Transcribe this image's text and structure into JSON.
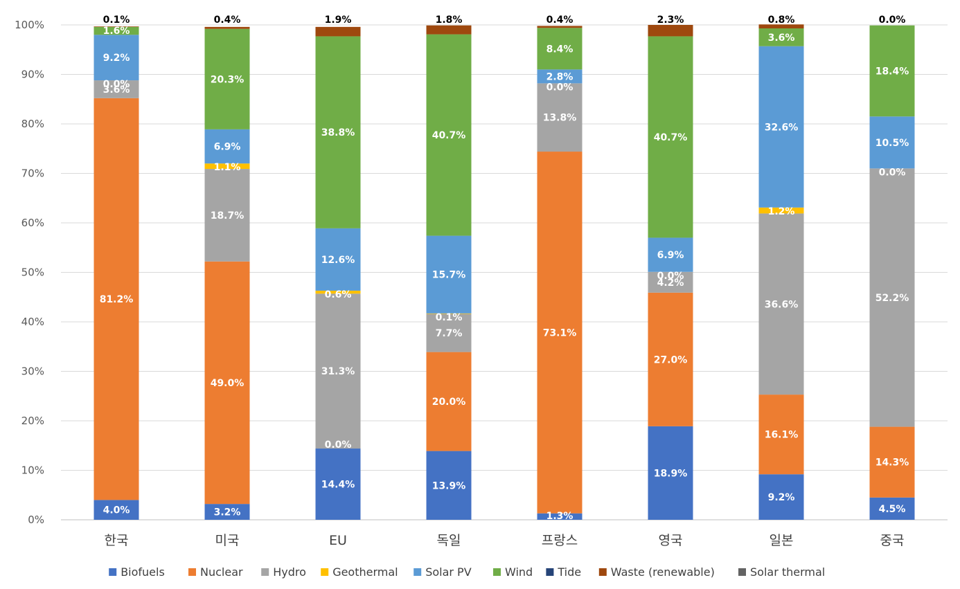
{
  "chart_data": {
    "type": "bar",
    "stacked": true,
    "ylim": [
      0,
      100
    ],
    "y_ticks": [
      "0%",
      "10%",
      "20%",
      "30%",
      "40%",
      "50%",
      "60%",
      "70%",
      "80%",
      "90%",
      "100%"
    ],
    "grid": true,
    "legend_position": "bottom",
    "categories": [
      "한국",
      "미국",
      "EU",
      "독일",
      "프랑스",
      "영국",
      "일본",
      "중국"
    ],
    "series": [
      {
        "name": "Biofuels",
        "color": "#4472C4",
        "values": [
          4.0,
          3.2,
          14.4,
          13.9,
          1.3,
          18.9,
          9.2,
          4.5
        ]
      },
      {
        "name": "Nuclear",
        "color": "#ED7D31",
        "values": [
          81.2,
          49.0,
          0.0,
          20.0,
          73.1,
          27.0,
          16.1,
          14.3
        ]
      },
      {
        "name": "Hydro",
        "color": "#A5A5A5",
        "values": [
          3.6,
          18.7,
          31.3,
          7.7,
          13.8,
          4.2,
          36.6,
          52.2
        ]
      },
      {
        "name": "Geothermal",
        "color": "#FFC000",
        "values": [
          0.0,
          1.1,
          0.6,
          0.1,
          0.0,
          0.0,
          1.2,
          0.0
        ]
      },
      {
        "name": "Solar PV",
        "color": "#5B9BD5",
        "values": [
          9.2,
          6.9,
          12.6,
          15.7,
          2.8,
          6.9,
          32.6,
          10.5
        ]
      },
      {
        "name": "Wind",
        "color": "#70AD47",
        "values": [
          1.6,
          20.3,
          38.8,
          40.7,
          8.4,
          40.7,
          3.6,
          18.4
        ]
      },
      {
        "name": "Tide",
        "color": "#264478",
        "values": [
          0.0,
          0.0,
          0.0,
          0.0,
          0.0,
          0.0,
          0.0,
          0.0
        ]
      },
      {
        "name": "Waste (renewable)",
        "color": "#9E480E",
        "values": [
          0.1,
          0.4,
          1.9,
          1.8,
          0.4,
          2.3,
          0.8,
          0.0
        ]
      },
      {
        "name": "Solar thermal",
        "color": "#636363",
        "values": [
          0.0,
          0.0,
          0.0,
          0.0,
          0.0,
          0.0,
          0.0,
          0.0
        ]
      }
    ],
    "data_labels": [
      [
        {
          "s": 0,
          "text": "4.0%"
        },
        {
          "s": 1,
          "text": "81.2%"
        },
        {
          "s": 2,
          "text": "3.6%"
        },
        {
          "s": 3,
          "text": "0.0%"
        },
        {
          "s": 4,
          "text": "9.2%"
        },
        {
          "s": 5,
          "text": "1.6%"
        },
        {
          "s": 7,
          "text": "0.1%"
        }
      ],
      [
        {
          "s": 0,
          "text": "3.2%"
        },
        {
          "s": 1,
          "text": "49.0%"
        },
        {
          "s": 2,
          "text": "18.7%"
        },
        {
          "s": 3,
          "text": "1.1%"
        },
        {
          "s": 4,
          "text": "6.9%"
        },
        {
          "s": 5,
          "text": "20.3%"
        },
        {
          "s": 7,
          "text": "0.4%"
        }
      ],
      [
        {
          "s": 0,
          "text": "14.4%"
        },
        {
          "s": 1,
          "text": "0.0%"
        },
        {
          "s": 2,
          "text": "31.3%"
        },
        {
          "s": 3,
          "text": "0.6%"
        },
        {
          "s": 4,
          "text": "12.6%"
        },
        {
          "s": 5,
          "text": "38.8%"
        },
        {
          "s": 7,
          "text": "1.9%"
        }
      ],
      [
        {
          "s": 0,
          "text": "13.9%"
        },
        {
          "s": 1,
          "text": "20.0%"
        },
        {
          "s": 2,
          "text": "7.7%"
        },
        {
          "s": 3,
          "text": "0.1%"
        },
        {
          "s": 4,
          "text": "15.7%"
        },
        {
          "s": 5,
          "text": "40.7%"
        },
        {
          "s": 7,
          "text": "1.8%"
        }
      ],
      [
        {
          "s": 0,
          "text": "1.3%"
        },
        {
          "s": 1,
          "text": "73.1%"
        },
        {
          "s": 2,
          "text": "13.8%"
        },
        {
          "s": 3,
          "text": "0.0%"
        },
        {
          "s": 4,
          "text": "2.8%"
        },
        {
          "s": 5,
          "text": "8.4%"
        },
        {
          "s": 7,
          "text": "0.4%"
        }
      ],
      [
        {
          "s": 0,
          "text": "18.9%"
        },
        {
          "s": 1,
          "text": "27.0%"
        },
        {
          "s": 2,
          "text": "4.2%"
        },
        {
          "s": 3,
          "text": "0.0%"
        },
        {
          "s": 4,
          "text": "6.9%"
        },
        {
          "s": 5,
          "text": "40.7%"
        },
        {
          "s": 7,
          "text": "2.3%"
        }
      ],
      [
        {
          "s": 0,
          "text": "9.2%"
        },
        {
          "s": 1,
          "text": "16.1%"
        },
        {
          "s": 2,
          "text": "36.6%"
        },
        {
          "s": 3,
          "text": "1.2%"
        },
        {
          "s": 4,
          "text": "32.6%"
        },
        {
          "s": 5,
          "text": "3.6%"
        },
        {
          "s": 7,
          "text": "0.8%"
        }
      ],
      [
        {
          "s": 0,
          "text": "4.5%"
        },
        {
          "s": 1,
          "text": "14.3%"
        },
        {
          "s": 2,
          "text": "52.2%"
        },
        {
          "s": 3,
          "text": "0.0%"
        },
        {
          "s": 4,
          "text": "10.5%"
        },
        {
          "s": 5,
          "text": "18.4%"
        },
        {
          "s": 7,
          "text": "0.0%"
        }
      ]
    ]
  }
}
